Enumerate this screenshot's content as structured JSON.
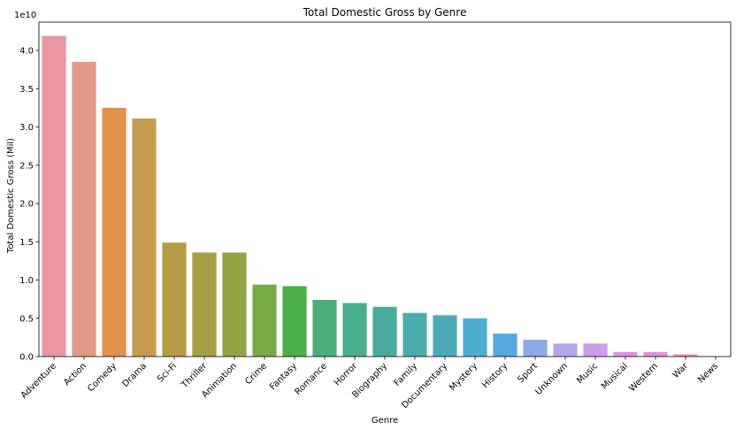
{
  "chart_data": {
    "type": "bar",
    "title": "Total Domestic Gross by Genre",
    "xlabel": "Genre",
    "ylabel": "Total Domestic Gross (Mil)",
    "offset_label": "1e10",
    "ylim": [
      0,
      4.37
    ],
    "yticks": [
      0.0,
      0.5,
      1.0,
      1.5,
      2.0,
      2.5,
      3.0,
      3.5,
      4.0
    ],
    "ytick_labels": [
      "0.0",
      "0.5",
      "1.0",
      "1.5",
      "2.0",
      "2.5",
      "3.0",
      "3.5",
      "4.0"
    ],
    "grid": false,
    "categories": [
      "Adventure",
      "Action",
      "Comedy",
      "Drama",
      "Sci-Fi",
      "Thriller",
      "Animation",
      "Crime",
      "Fantasy",
      "Romance",
      "Horror",
      "Biography",
      "Family",
      "Documentary",
      "Mystery",
      "History",
      "Sport",
      "Unknown",
      "Music",
      "Musical",
      "Western",
      "War",
      "News"
    ],
    "values": [
      4.19,
      3.85,
      3.25,
      3.11,
      1.49,
      1.36,
      1.36,
      0.94,
      0.92,
      0.74,
      0.7,
      0.65,
      0.57,
      0.54,
      0.5,
      0.3,
      0.22,
      0.17,
      0.17,
      0.06,
      0.06,
      0.03,
      0.0
    ],
    "colors": [
      "#ea96a3",
      "#e69887",
      "#e1914a",
      "#c59b50",
      "#b79c47",
      "#a5a046",
      "#92a346",
      "#77ab45",
      "#4ab04a",
      "#4dad7a",
      "#4aad8e",
      "#49ab9d",
      "#4cacab",
      "#4ca9b8",
      "#4dadce",
      "#58a7e3",
      "#8fa8e8",
      "#b3a6ea",
      "#ce9ded",
      "#e28fe8",
      "#ed8cd9",
      "#ec92c4",
      "#ea93b3"
    ]
  }
}
